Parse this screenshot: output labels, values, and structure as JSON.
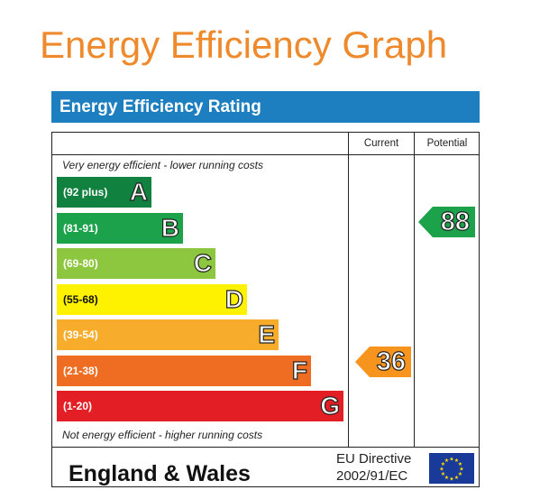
{
  "page_title": "Energy Efficiency Graph",
  "header": "Energy Efficiency Rating",
  "columns": {
    "current": "Current",
    "potential": "Potential"
  },
  "top_note": "Very energy efficient - lower running costs",
  "bottom_note": "Not energy efficient - higher running costs",
  "bands": [
    {
      "range": "(92 plus)",
      "letter": "A",
      "color": "#10813e"
    },
    {
      "range": "(81-91)",
      "letter": "B",
      "color": "#1ba24a"
    },
    {
      "range": "(69-80)",
      "letter": "C",
      "color": "#8dc63f"
    },
    {
      "range": "(55-68)",
      "letter": "D",
      "color": "#fff200"
    },
    {
      "range": "(39-54)",
      "letter": "E",
      "color": "#f7ac2b"
    },
    {
      "range": "(21-38)",
      "letter": "F",
      "color": "#ef6d23"
    },
    {
      "range": "(1-20)",
      "letter": "G",
      "color": "#e31e24"
    }
  ],
  "ratings": {
    "current": {
      "value": "36",
      "color": "#f7941d"
    },
    "potential": {
      "value": "88",
      "color": "#1ba24a"
    }
  },
  "footer": {
    "region": "England & Wales",
    "directive_line1": "EU Directive",
    "directive_line2": "2002/91/EC"
  },
  "icons": {
    "flag": "eu-flag-icon"
  }
}
